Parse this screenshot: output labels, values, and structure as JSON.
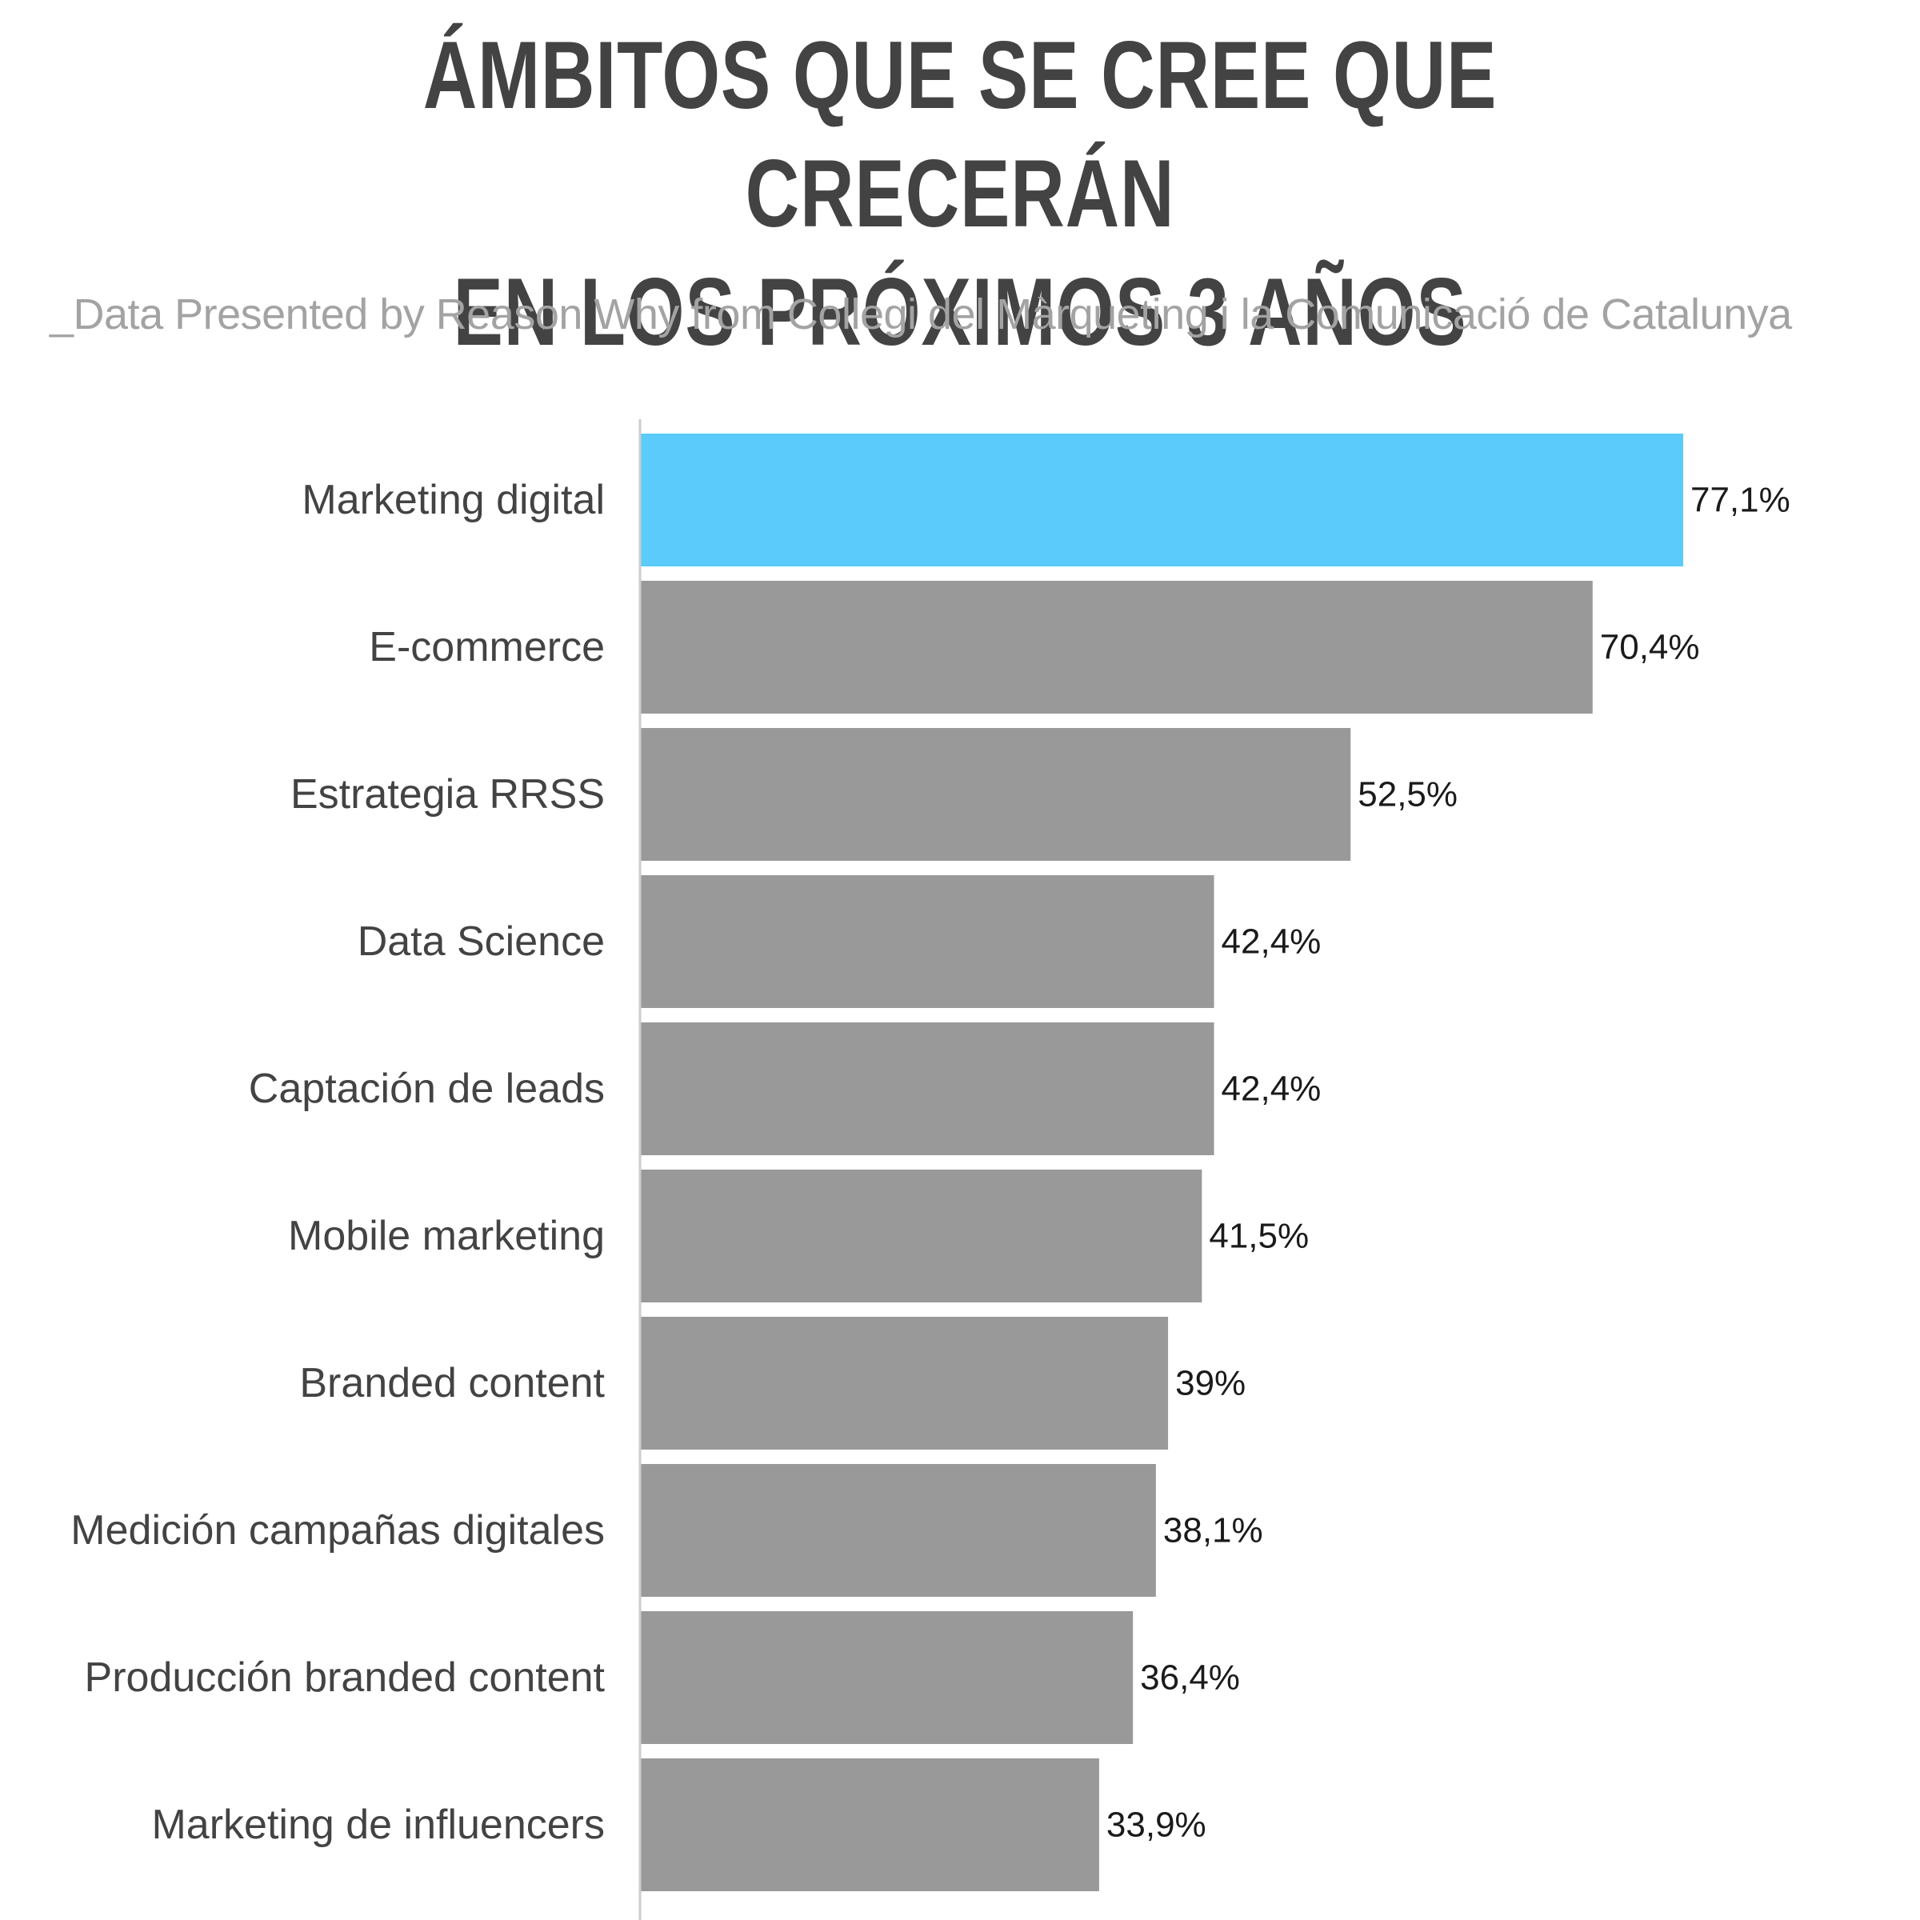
{
  "title_line1": "ÁMBITOS QUE SE CREE QUE CRECERÁN",
  "title_line2": "EN LOS PRÓXIMOS 3 AÑOS",
  "subtitle": "_Data Presented by Reason Why from Collegi del Màrqueting i la Comunicació de Catalunya",
  "colors": {
    "highlight": "#5bcbfc",
    "bar": "#999999",
    "axis": "#cccccc",
    "label": "#434343",
    "value": "#1a1a1a"
  },
  "chart_data": {
    "type": "bar",
    "orientation": "horizontal",
    "categories": [
      "Marketing digital",
      "E-commerce",
      "Estrategia RRSS",
      "Data Science",
      "Captación de leads",
      "Mobile marketing",
      "Branded content",
      "Medición campañas digitales",
      "Producción branded content",
      "Marketing de influencers"
    ],
    "values": [
      77.1,
      70.4,
      52.5,
      42.4,
      42.4,
      41.5,
      39,
      38.1,
      36.4,
      33.9
    ],
    "value_labels": [
      "77,1%",
      "70,4%",
      "52,5%",
      "42,4%",
      "42,4%",
      "41,5%",
      "39%",
      "38,1%",
      "36,4%",
      "33,9%"
    ],
    "highlight_index": 0,
    "xlim": [
      0,
      100
    ],
    "grid": false,
    "legend": "none"
  }
}
